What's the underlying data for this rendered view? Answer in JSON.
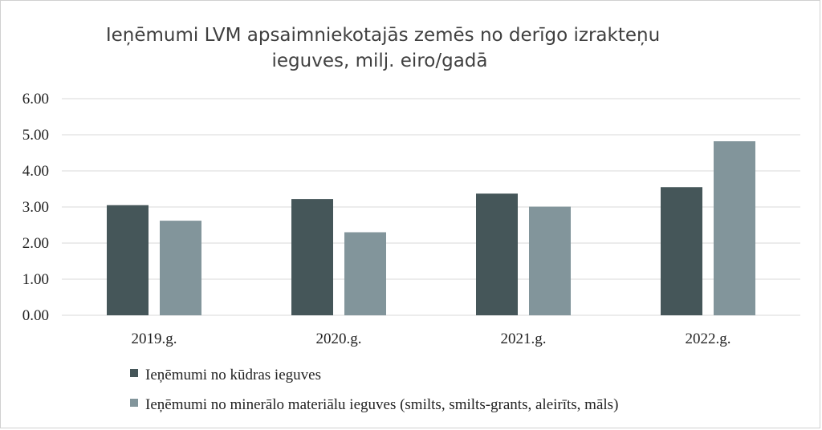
{
  "chart_data": {
    "type": "bar",
    "title_lines": [
      "Ieņēmumi LVM apsaimniekotajās zemēs no derīgo izrakteņu",
      "ieguves, milj. eiro/gadā"
    ],
    "xlabel": "",
    "ylabel": "",
    "categories": [
      "2019.g.",
      "2020.g.",
      "2021.g.",
      "2022.g."
    ],
    "ylim": [
      0,
      6
    ],
    "yticks": [
      "0.00",
      "1.00",
      "2.00",
      "3.00",
      "4.00",
      "5.00",
      "6.00"
    ],
    "grid": true,
    "legend_position": "bottom",
    "series": [
      {
        "name": "Ieņēmumi no kūdras ieguves",
        "color": "#455659",
        "values": [
          3.05,
          3.22,
          3.37,
          3.55
        ]
      },
      {
        "name": "Ieņēmumi no minerālo materiālu ieguves (smilts, smilts-grants, aleirīts, māls)",
        "color": "#82959b",
        "values": [
          2.62,
          2.3,
          3.01,
          4.82
        ]
      }
    ]
  }
}
